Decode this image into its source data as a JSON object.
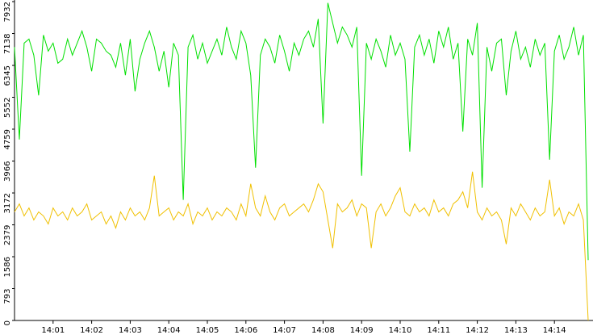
{
  "chart_data": {
    "type": "line",
    "categories": [
      null,
      null,
      null,
      null,
      null,
      null,
      null,
      null,
      "14:01",
      null,
      null,
      null,
      null,
      null,
      null,
      null,
      "14:02",
      null,
      null,
      null,
      null,
      null,
      null,
      null,
      "14:03",
      null,
      null,
      null,
      null,
      null,
      null,
      null,
      "14:04",
      null,
      null,
      null,
      null,
      null,
      null,
      null,
      "14:05",
      null,
      null,
      null,
      null,
      null,
      null,
      null,
      "14:06",
      null,
      null,
      null,
      null,
      null,
      null,
      null,
      "14:07",
      null,
      null,
      null,
      null,
      null,
      null,
      null,
      "14:08",
      null,
      null,
      null,
      null,
      null,
      null,
      null,
      "14:09",
      null,
      null,
      null,
      null,
      null,
      null,
      null,
      "14:10",
      null,
      null,
      null,
      null,
      null,
      null,
      null,
      "14:11",
      null,
      null,
      null,
      null,
      null,
      null,
      null,
      "14:12",
      null,
      null,
      null,
      null,
      null,
      null,
      null,
      "14:13",
      null,
      null,
      null,
      null,
      null,
      null,
      null,
      "14:14",
      null,
      null,
      null,
      null,
      null,
      null,
      null
    ],
    "series": [
      {
        "color": "#00e000",
        "values": [
          6800,
          4500,
          6900,
          7000,
          6600,
          5600,
          7100,
          6700,
          6900,
          6400,
          6500,
          7000,
          6600,
          6900,
          7200,
          6800,
          6200,
          7000,
          6900,
          6700,
          6600,
          6300,
          6900,
          6100,
          7000,
          5700,
          6500,
          6900,
          7200,
          6800,
          6200,
          6700,
          5800,
          6900,
          6600,
          3000,
          6800,
          7100,
          6500,
          6900,
          6400,
          6700,
          7000,
          6600,
          7300,
          6800,
          6500,
          7200,
          6900,
          6100,
          3800,
          6600,
          7000,
          6800,
          6400,
          7100,
          6700,
          6200,
          6900,
          6600,
          7000,
          7200,
          6800,
          7500,
          4900,
          7900,
          7400,
          6900,
          7300,
          7100,
          6800,
          7300,
          3600,
          6900,
          6500,
          7000,
          6700,
          6300,
          7100,
          6600,
          6900,
          6500,
          4200,
          6800,
          7100,
          6600,
          7000,
          6400,
          7200,
          6800,
          7300,
          6500,
          6900,
          4700,
          7000,
          6600,
          7400,
          3300,
          6800,
          6200,
          6900,
          7000,
          5600,
          6700,
          7200,
          6500,
          6800,
          6300,
          7000,
          6600,
          6900,
          4000,
          6700,
          7100,
          6500,
          6800,
          7300,
          6600,
          7100,
          1500
        ]
      },
      {
        "color": "#f0c000",
        "values": [
          2700,
          2900,
          2600,
          2800,
          2500,
          2700,
          2600,
          2400,
          2800,
          2600,
          2700,
          2500,
          2800,
          2600,
          2700,
          2900,
          2500,
          2600,
          2700,
          2400,
          2600,
          2300,
          2700,
          2500,
          2800,
          2600,
          2700,
          2500,
          2800,
          3600,
          2600,
          2700,
          2800,
          2500,
          2700,
          2600,
          2900,
          2400,
          2700,
          2600,
          2800,
          2500,
          2700,
          2600,
          2800,
          2700,
          2500,
          2900,
          2600,
          3400,
          2800,
          2600,
          3100,
          2700,
          2500,
          2800,
          2900,
          2600,
          2700,
          2800,
          2900,
          2700,
          3000,
          3400,
          3200,
          2500,
          1800,
          2900,
          2700,
          2800,
          3000,
          2600,
          2900,
          2800,
          1800,
          2700,
          2900,
          2600,
          2800,
          3100,
          3300,
          2700,
          2600,
          2900,
          2700,
          2800,
          2600,
          3000,
          2700,
          2800,
          2600,
          2900,
          3000,
          3200,
          2800,
          3700,
          2700,
          2500,
          2800,
          2600,
          2700,
          2500,
          1900,
          2800,
          2600,
          2900,
          2700,
          2500,
          2800,
          2600,
          2700,
          3500,
          2600,
          2800,
          2400,
          2700,
          2600,
          2900,
          2500,
          0
        ]
      }
    ],
    "ylim": [
      0,
      7932
    ],
    "yticks": [
      0,
      793,
      1586,
      2379,
      3172,
      3966,
      4759,
      5552,
      6345,
      7138,
      7932
    ]
  }
}
